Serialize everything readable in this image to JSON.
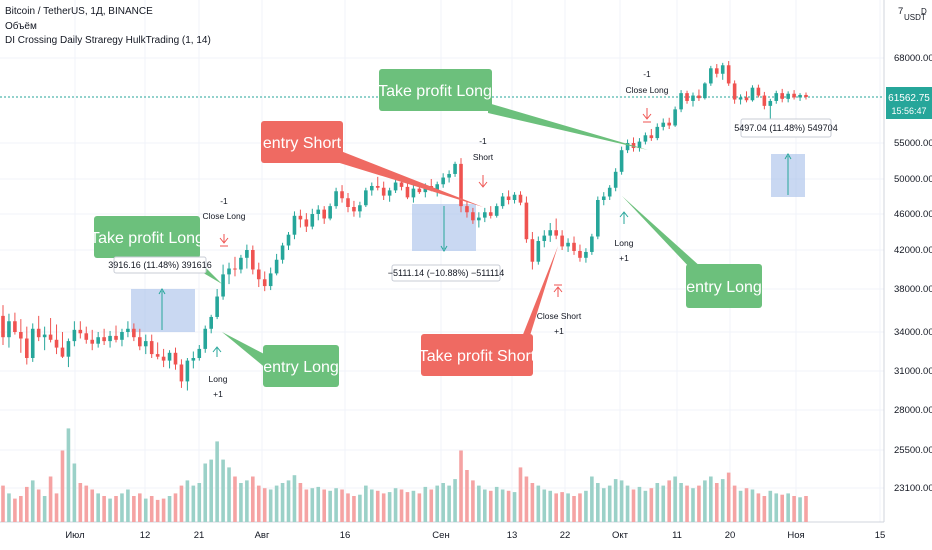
{
  "header": {
    "line1": "Bitcoin / TetherUS, 1Д, BINANCE",
    "line2": "Объём",
    "line3": "DI Crossing Daily Straregy HulkTrading (1, 14)"
  },
  "axis_corner": {
    "top": "7",
    "unit": "USDT",
    "mark": "D"
  },
  "price_badge": {
    "price": "61562.75",
    "countdown": "15:56:47"
  },
  "colors": {
    "up": "#26a69a",
    "down": "#ef5350",
    "vol_up": "#9bd1c8",
    "vol_down": "#f5a3a3",
    "green_box": "#6cc07c",
    "red_box": "#ef6a62",
    "price_line": "#26a69a",
    "blue_zone": "#9db8e8"
  },
  "chart_data": {
    "type": "candlestick",
    "title": "Bitcoin / TetherUS, 1Д, BINANCE",
    "y_ticks": [
      "68000.00",
      "55000.00",
      "50000.00",
      "46000.00",
      "42000.00",
      "38000.00",
      "34000.00",
      "31000.00",
      "28000.00",
      "25500.00",
      "23100.00"
    ],
    "x_ticks": [
      "Июл",
      "12",
      "21",
      "Авг",
      "16",
      "Сен",
      "13",
      "22",
      "Окт",
      "11",
      "20",
      "Ноя",
      "15"
    ],
    "candles": [
      {
        "o": 35500,
        "h": 36500,
        "l": 33000,
        "c": 33600
      },
      {
        "o": 33600,
        "h": 35700,
        "l": 32800,
        "c": 35000
      },
      {
        "o": 35000,
        "h": 35800,
        "l": 33800,
        "c": 34000
      },
      {
        "o": 34000,
        "h": 35200,
        "l": 32400,
        "c": 33500
      },
      {
        "o": 33500,
        "h": 34500,
        "l": 31500,
        "c": 32000
      },
      {
        "o": 32000,
        "h": 34800,
        "l": 31700,
        "c": 34300
      },
      {
        "o": 34300,
        "h": 35500,
        "l": 33300,
        "c": 33600
      },
      {
        "o": 33600,
        "h": 34500,
        "l": 32600,
        "c": 33800
      },
      {
        "o": 33800,
        "h": 35300,
        "l": 33200,
        "c": 33400
      },
      {
        "o": 33400,
        "h": 34700,
        "l": 32300,
        "c": 32800
      },
      {
        "o": 32800,
        "h": 34000,
        "l": 32000,
        "c": 32100
      },
      {
        "o": 32100,
        "h": 33500,
        "l": 31300,
        "c": 33300
      },
      {
        "o": 33300,
        "h": 35000,
        "l": 32900,
        "c": 34200
      },
      {
        "o": 34200,
        "h": 35000,
        "l": 33500,
        "c": 33900
      },
      {
        "o": 33900,
        "h": 34500,
        "l": 33100,
        "c": 33400
      },
      {
        "o": 33400,
        "h": 34200,
        "l": 32600,
        "c": 33100
      },
      {
        "o": 33100,
        "h": 34000,
        "l": 32800,
        "c": 33600
      },
      {
        "o": 33600,
        "h": 34300,
        "l": 33000,
        "c": 33300
      },
      {
        "o": 33300,
        "h": 34100,
        "l": 32800,
        "c": 33700
      },
      {
        "o": 33700,
        "h": 34600,
        "l": 33200,
        "c": 33400
      },
      {
        "o": 33400,
        "h": 34300,
        "l": 32900,
        "c": 34000
      },
      {
        "o": 34000,
        "h": 35000,
        "l": 33600,
        "c": 34300
      },
      {
        "o": 34300,
        "h": 34800,
        "l": 33300,
        "c": 33600
      },
      {
        "o": 33600,
        "h": 34300,
        "l": 32600,
        "c": 32900
      },
      {
        "o": 32900,
        "h": 33800,
        "l": 32300,
        "c": 33300
      },
      {
        "o": 33300,
        "h": 33800,
        "l": 32000,
        "c": 32300
      },
      {
        "o": 32300,
        "h": 33200,
        "l": 31900,
        "c": 32100
      },
      {
        "o": 32100,
        "h": 32700,
        "l": 31300,
        "c": 31800
      },
      {
        "o": 31800,
        "h": 32600,
        "l": 31200,
        "c": 32400
      },
      {
        "o": 32400,
        "h": 32800,
        "l": 31100,
        "c": 31500
      },
      {
        "o": 31500,
        "h": 31900,
        "l": 29700,
        "c": 30200
      },
      {
        "o": 30200,
        "h": 32000,
        "l": 29500,
        "c": 31800
      },
      {
        "o": 31800,
        "h": 32500,
        "l": 31200,
        "c": 32000
      },
      {
        "o": 32000,
        "h": 33000,
        "l": 31800,
        "c": 32700
      },
      {
        "o": 32700,
        "h": 34600,
        "l": 32400,
        "c": 34300
      },
      {
        "o": 34300,
        "h": 35600,
        "l": 33900,
        "c": 35400
      },
      {
        "o": 35400,
        "h": 38000,
        "l": 35200,
        "c": 37300
      },
      {
        "o": 37300,
        "h": 40500,
        "l": 37000,
        "c": 39500
      },
      {
        "o": 39500,
        "h": 40700,
        "l": 38500,
        "c": 40100
      },
      {
        "o": 40100,
        "h": 41300,
        "l": 39300,
        "c": 40000
      },
      {
        "o": 40000,
        "h": 41500,
        "l": 39600,
        "c": 41200
      },
      {
        "o": 41200,
        "h": 42600,
        "l": 40100,
        "c": 42000
      },
      {
        "o": 42000,
        "h": 42500,
        "l": 39500,
        "c": 40000
      },
      {
        "o": 40000,
        "h": 40700,
        "l": 38200,
        "c": 39000
      },
      {
        "o": 39000,
        "h": 39800,
        "l": 37800,
        "c": 38300
      },
      {
        "o": 38300,
        "h": 40200,
        "l": 37900,
        "c": 39600
      },
      {
        "o": 39600,
        "h": 41600,
        "l": 39400,
        "c": 41000
      },
      {
        "o": 41000,
        "h": 42800,
        "l": 40600,
        "c": 42500
      },
      {
        "o": 42500,
        "h": 44000,
        "l": 42000,
        "c": 43700
      },
      {
        "o": 43700,
        "h": 46300,
        "l": 43200,
        "c": 45800
      },
      {
        "o": 45800,
        "h": 46500,
        "l": 44500,
        "c": 45400
      },
      {
        "o": 45400,
        "h": 46100,
        "l": 44000,
        "c": 44600
      },
      {
        "o": 44600,
        "h": 46600,
        "l": 44300,
        "c": 46000
      },
      {
        "o": 46000,
        "h": 47000,
        "l": 45300,
        "c": 46500
      },
      {
        "o": 46500,
        "h": 46900,
        "l": 44900,
        "c": 45500
      },
      {
        "o": 45500,
        "h": 47200,
        "l": 45300,
        "c": 46900
      },
      {
        "o": 46900,
        "h": 49000,
        "l": 46600,
        "c": 48600
      },
      {
        "o": 48600,
        "h": 49300,
        "l": 47300,
        "c": 47800
      },
      {
        "o": 47800,
        "h": 48400,
        "l": 46200,
        "c": 46800
      },
      {
        "o": 46800,
        "h": 47500,
        "l": 45700,
        "c": 46300
      },
      {
        "o": 46300,
        "h": 47400,
        "l": 45600,
        "c": 47000
      },
      {
        "o": 47000,
        "h": 49000,
        "l": 46800,
        "c": 48700
      },
      {
        "o": 48700,
        "h": 49600,
        "l": 48100,
        "c": 49200
      },
      {
        "o": 49200,
        "h": 50300,
        "l": 48700,
        "c": 49000
      },
      {
        "o": 49000,
        "h": 49700,
        "l": 47600,
        "c": 48100
      },
      {
        "o": 48100,
        "h": 49000,
        "l": 47400,
        "c": 48700
      },
      {
        "o": 48700,
        "h": 50000,
        "l": 48400,
        "c": 49600
      },
      {
        "o": 49600,
        "h": 50100,
        "l": 48700,
        "c": 49100
      },
      {
        "o": 49100,
        "h": 49800,
        "l": 47700,
        "c": 47900
      },
      {
        "o": 47900,
        "h": 49300,
        "l": 47300,
        "c": 48900
      },
      {
        "o": 48900,
        "h": 49600,
        "l": 48300,
        "c": 48500
      },
      {
        "o": 48500,
        "h": 49500,
        "l": 47900,
        "c": 49200
      },
      {
        "o": 49200,
        "h": 50000,
        "l": 48600,
        "c": 48800
      },
      {
        "o": 48800,
        "h": 49700,
        "l": 48000,
        "c": 49400
      },
      {
        "o": 49400,
        "h": 50800,
        "l": 49000,
        "c": 50200
      },
      {
        "o": 50200,
        "h": 51200,
        "l": 49600,
        "c": 50700
      },
      {
        "o": 50700,
        "h": 52400,
        "l": 50300,
        "c": 52100
      },
      {
        "o": 52100,
        "h": 52900,
        "l": 46200,
        "c": 46900
      },
      {
        "o": 46900,
        "h": 47500,
        "l": 45600,
        "c": 46200
      },
      {
        "o": 46200,
        "h": 46700,
        "l": 44900,
        "c": 45300
      },
      {
        "o": 45300,
        "h": 46200,
        "l": 44500,
        "c": 45600
      },
      {
        "o": 45600,
        "h": 46700,
        "l": 45100,
        "c": 46200
      },
      {
        "o": 46200,
        "h": 46900,
        "l": 45500,
        "c": 45800
      },
      {
        "o": 45800,
        "h": 47200,
        "l": 45600,
        "c": 46900
      },
      {
        "o": 46900,
        "h": 48400,
        "l": 46600,
        "c": 48000
      },
      {
        "o": 48000,
        "h": 48700,
        "l": 47100,
        "c": 47600
      },
      {
        "o": 47600,
        "h": 48500,
        "l": 47200,
        "c": 48200
      },
      {
        "o": 48200,
        "h": 48600,
        "l": 47000,
        "c": 47300
      },
      {
        "o": 47300,
        "h": 48000,
        "l": 42800,
        "c": 43200
      },
      {
        "o": 43200,
        "h": 44000,
        "l": 40000,
        "c": 40800
      },
      {
        "o": 40800,
        "h": 43500,
        "l": 40500,
        "c": 43000
      },
      {
        "o": 43000,
        "h": 44200,
        "l": 42300,
        "c": 43600
      },
      {
        "o": 43600,
        "h": 45000,
        "l": 42900,
        "c": 44200
      },
      {
        "o": 44200,
        "h": 45500,
        "l": 43200,
        "c": 43600
      },
      {
        "o": 43600,
        "h": 44200,
        "l": 42000,
        "c": 42400
      },
      {
        "o": 42400,
        "h": 43300,
        "l": 41800,
        "c": 42800
      },
      {
        "o": 42800,
        "h": 43500,
        "l": 41500,
        "c": 41900
      },
      {
        "o": 41900,
        "h": 42600,
        "l": 40800,
        "c": 41200
      },
      {
        "o": 41200,
        "h": 42200,
        "l": 40700,
        "c": 41800
      },
      {
        "o": 41800,
        "h": 43800,
        "l": 41500,
        "c": 43500
      },
      {
        "o": 43500,
        "h": 48000,
        "l": 43200,
        "c": 47600
      },
      {
        "o": 47600,
        "h": 48500,
        "l": 47000,
        "c": 48000
      },
      {
        "o": 48000,
        "h": 49300,
        "l": 47600,
        "c": 49000
      },
      {
        "o": 49000,
        "h": 51500,
        "l": 48600,
        "c": 51000
      },
      {
        "o": 51000,
        "h": 54500,
        "l": 50600,
        "c": 54000
      },
      {
        "o": 54000,
        "h": 55500,
        "l": 53600,
        "c": 55000
      },
      {
        "o": 55000,
        "h": 55800,
        "l": 53800,
        "c": 54300
      },
      {
        "o": 54300,
        "h": 55700,
        "l": 53800,
        "c": 55200
      },
      {
        "o": 55200,
        "h": 56500,
        "l": 54800,
        "c": 56100
      },
      {
        "o": 56100,
        "h": 57000,
        "l": 55300,
        "c": 55700
      },
      {
        "o": 55700,
        "h": 57800,
        "l": 55400,
        "c": 57300
      },
      {
        "o": 57300,
        "h": 58500,
        "l": 56800,
        "c": 57900
      },
      {
        "o": 57900,
        "h": 58600,
        "l": 57000,
        "c": 57500
      },
      {
        "o": 57500,
        "h": 60200,
        "l": 57300,
        "c": 59800
      },
      {
        "o": 59800,
        "h": 62700,
        "l": 59400,
        "c": 62200
      },
      {
        "o": 62200,
        "h": 62600,
        "l": 60600,
        "c": 61000
      },
      {
        "o": 61000,
        "h": 62300,
        "l": 60200,
        "c": 61800
      },
      {
        "o": 61800,
        "h": 62800,
        "l": 61000,
        "c": 61400
      },
      {
        "o": 61400,
        "h": 64000,
        "l": 61200,
        "c": 63800
      },
      {
        "o": 63800,
        "h": 66700,
        "l": 63400,
        "c": 66300
      },
      {
        "o": 66300,
        "h": 67000,
        "l": 64800,
        "c": 65400
      },
      {
        "o": 65400,
        "h": 67200,
        "l": 64400,
        "c": 66800
      },
      {
        "o": 66800,
        "h": 67500,
        "l": 63400,
        "c": 63800
      },
      {
        "o": 63800,
        "h": 64300,
        "l": 60600,
        "c": 61200
      },
      {
        "o": 61200,
        "h": 62000,
        "l": 60500,
        "c": 61500
      },
      {
        "o": 61500,
        "h": 62500,
        "l": 60800,
        "c": 61100
      },
      {
        "o": 61100,
        "h": 63500,
        "l": 60900,
        "c": 63100
      },
      {
        "o": 63100,
        "h": 63600,
        "l": 61500,
        "c": 61800
      },
      {
        "o": 61800,
        "h": 62400,
        "l": 59800,
        "c": 60300
      },
      {
        "o": 60300,
        "h": 61300,
        "l": 58400,
        "c": 61000
      },
      {
        "o": 61000,
        "h": 62600,
        "l": 60600,
        "c": 62200
      },
      {
        "o": 62200,
        "h": 62900,
        "l": 60800,
        "c": 61300
      },
      {
        "o": 61300,
        "h": 62500,
        "l": 60800,
        "c": 62100
      },
      {
        "o": 62100,
        "h": 62700,
        "l": 61200,
        "c": 61500
      },
      {
        "o": 61500,
        "h": 62200,
        "l": 61000,
        "c": 61900
      },
      {
        "o": 61900,
        "h": 62300,
        "l": 61200,
        "c": 61562.75
      }
    ],
    "volume": [
      0.28,
      0.22,
      0.18,
      0.2,
      0.27,
      0.32,
      0.25,
      0.2,
      0.35,
      0.22,
      0.55,
      0.72,
      0.45,
      0.3,
      0.28,
      0.25,
      0.22,
      0.2,
      0.18,
      0.2,
      0.22,
      0.25,
      0.2,
      0.22,
      0.18,
      0.2,
      0.17,
      0.18,
      0.2,
      0.22,
      0.28,
      0.32,
      0.28,
      0.3,
      0.45,
      0.48,
      0.62,
      0.48,
      0.42,
      0.35,
      0.3,
      0.32,
      0.35,
      0.28,
      0.26,
      0.25,
      0.28,
      0.3,
      0.32,
      0.36,
      0.3,
      0.25,
      0.26,
      0.27,
      0.25,
      0.24,
      0.26,
      0.25,
      0.22,
      0.2,
      0.21,
      0.28,
      0.25,
      0.24,
      0.22,
      0.23,
      0.26,
      0.25,
      0.23,
      0.24,
      0.22,
      0.27,
      0.25,
      0.28,
      0.3,
      0.28,
      0.33,
      0.55,
      0.4,
      0.32,
      0.28,
      0.25,
      0.24,
      0.27,
      0.25,
      0.24,
      0.23,
      0.42,
      0.35,
      0.3,
      0.28,
      0.25,
      0.24,
      0.22,
      0.23,
      0.22,
      0.2,
      0.22,
      0.24,
      0.35,
      0.3,
      0.26,
      0.28,
      0.33,
      0.32,
      0.28,
      0.25,
      0.27,
      0.24,
      0.26,
      0.3,
      0.28,
      0.32,
      0.35,
      0.3,
      0.28,
      0.26,
      0.28,
      0.32,
      0.35,
      0.3,
      0.33,
      0.38,
      0.28,
      0.24,
      0.26,
      0.25,
      0.22,
      0.2,
      0.24,
      0.22,
      0.21,
      0.22,
      0.2,
      0.19,
      0.2,
      0.14
    ],
    "annotations": {
      "tp_long1": "Take profit Long",
      "entry_short": "entry Short",
      "tp_long2": "Take profit Long",
      "entry_long1": "entry Long",
      "tp_short": "Take profit Short",
      "entry_long2": "entry Long",
      "trade1": "3916.16 (11.48%) 391616",
      "trade2": "−5111.14 (−10.88%) −511114",
      "trade3": "5497.04 (11.48%) 549704"
    },
    "signals": {
      "closelong1_a": "-1",
      "closelong1_b": "Close Long",
      "long1_a": "Long",
      "long1_b": "+1",
      "short_a": "-1",
      "short_b": "Short",
      "closeshort_a": "Close Short",
      "closeshort_b": "+1",
      "long2_a": "Long",
      "long2_b": "+1",
      "closelong2_a": "-1",
      "closelong2_b": "Close Long"
    }
  }
}
